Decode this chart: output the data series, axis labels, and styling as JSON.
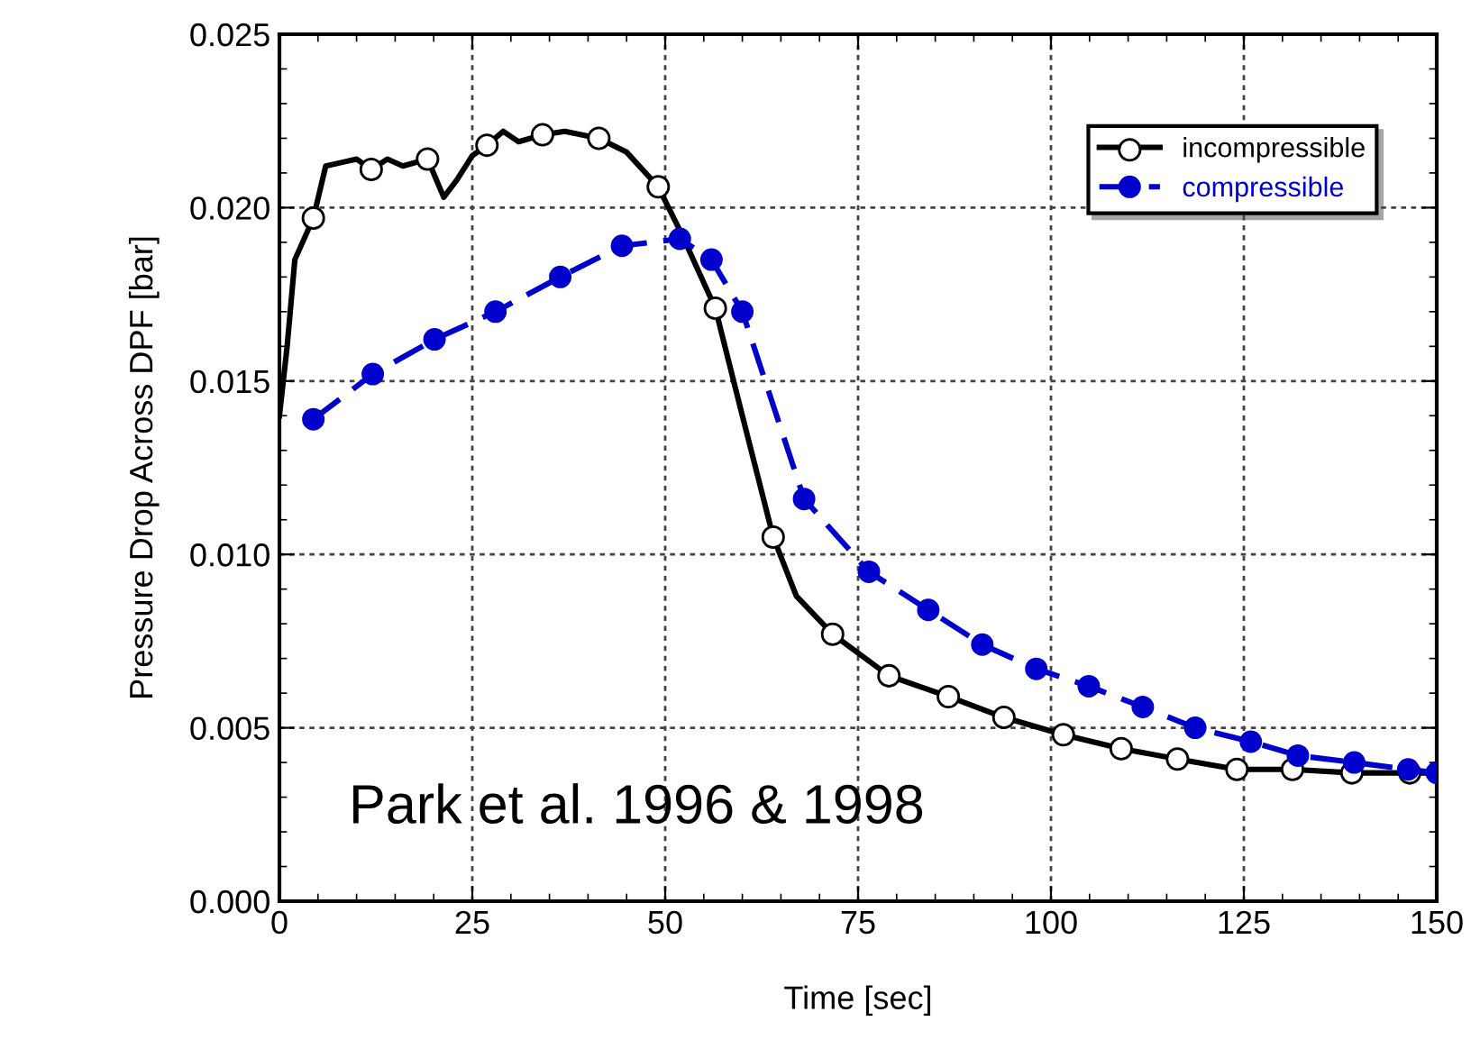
{
  "chart_data": {
    "type": "line",
    "xlabel": "Time [sec]",
    "ylabel": "Pressure Drop Across DPF [bar]",
    "xlim": [
      0,
      150
    ],
    "xticks": [
      0,
      25,
      50,
      75,
      100,
      125,
      150
    ],
    "ylim": [
      0,
      0.025
    ],
    "yticks": [
      {
        "value": 0,
        "label": "0.000"
      },
      {
        "value": 0.005,
        "label": "0.005"
      },
      {
        "value": 0.01,
        "label": "0.010"
      },
      {
        "value": 0.015,
        "label": "0.015"
      },
      {
        "value": 0.02,
        "label": "0.020"
      },
      {
        "value": 0.025,
        "label": "0.025"
      }
    ],
    "grid": true,
    "legend": "top right",
    "annotations": [
      "Park et al. 1996 & 1998"
    ],
    "series": [
      {
        "name": "incompressible",
        "color": "#000000",
        "marker": "none",
        "line_style": "solid",
        "x": [
          0,
          1,
          2,
          3,
          4.4,
          6,
          8,
          10,
          11.9,
          14,
          16,
          19.2,
          21.3,
          23,
          25,
          26.9,
          29,
          31,
          34.1,
          37,
          41.4,
          45,
          49.1,
          52,
          56.5,
          60,
          64,
          67,
          71.7,
          79,
          86.7,
          93.9,
          101.6,
          109.1,
          116.4,
          124.1,
          131.3,
          139,
          146.5,
          150
        ],
        "values": [
          0.014,
          0.016,
          0.0185,
          0.019,
          0.0197,
          0.0212,
          0.0213,
          0.0214,
          0.0211,
          0.0214,
          0.0212,
          0.0214,
          0.0203,
          0.0208,
          0.0215,
          0.0218,
          0.0222,
          0.0219,
          0.0221,
          0.0222,
          0.022,
          0.0216,
          0.0206,
          0.0193,
          0.0171,
          0.014,
          0.0105,
          0.0088,
          0.0077,
          0.0065,
          0.0059,
          0.0053,
          0.0048,
          0.0044,
          0.0041,
          0.0038,
          0.0038,
          0.0037,
          0.0037,
          0.0037
        ]
      },
      {
        "type": "scatter",
        "color": "#000000",
        "marker": "circle",
        "x": [
          4.4,
          11.9,
          19.2,
          26.9,
          34.1,
          41.4,
          49.1,
          56.5,
          64,
          71.7,
          79,
          86.7,
          93.9,
          101.6,
          109.1,
          116.4,
          124.1,
          131.3,
          139,
          146.5
        ],
        "values": [
          0.0197,
          0.0211,
          0.0214,
          0.0218,
          0.0221,
          0.022,
          0.0206,
          0.0171,
          0.0105,
          0.0077,
          0.0065,
          0.0059,
          0.0053,
          0.0048,
          0.0044,
          0.0041,
          0.0038,
          0.0038,
          0.0037,
          0.0037
        ]
      },
      {
        "name": "compressible",
        "color": "#0000cc",
        "marker": "circle",
        "line_style": "dashed",
        "x": [
          4.4,
          12.1,
          20.1,
          28,
          36.4,
          44.4,
          51.9,
          56,
          60,
          68,
          76.4,
          84.1,
          91.1,
          98.1,
          104.9,
          111.9,
          118.7,
          125.9,
          132,
          139.3,
          146.3,
          150
        ],
        "values": [
          0.0139,
          0.0152,
          0.0162,
          0.017,
          0.018,
          0.0189,
          0.0191,
          0.0185,
          0.017,
          0.0116,
          0.0095,
          0.0084,
          0.0074,
          0.0067,
          0.0062,
          0.0056,
          0.005,
          0.0046,
          0.0042,
          0.004,
          0.0038,
          0.0037
        ]
      }
    ]
  }
}
